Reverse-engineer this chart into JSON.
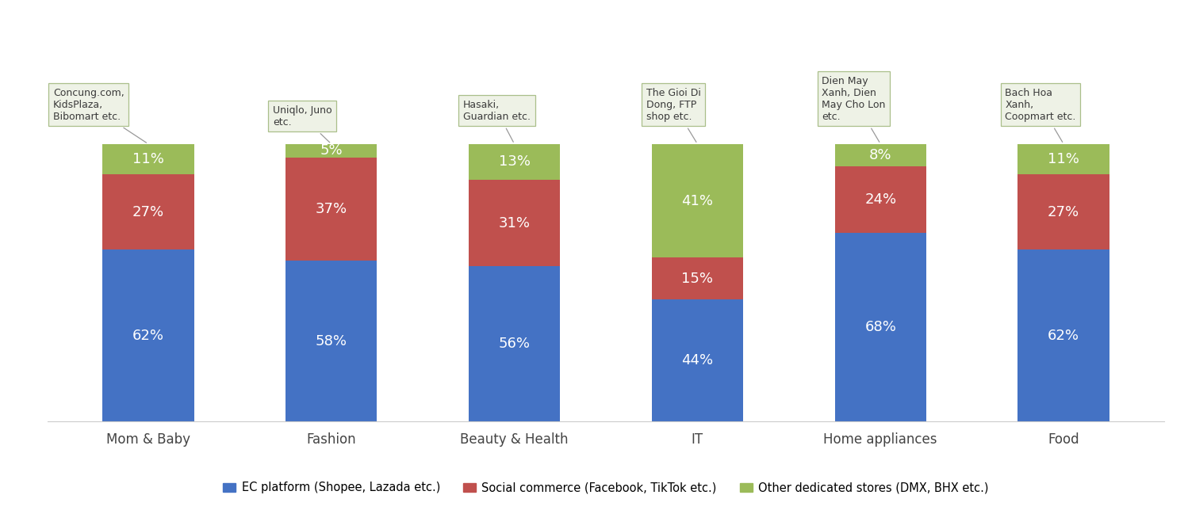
{
  "categories": [
    "Mom & Baby",
    "Fashion",
    "Beauty & Health",
    "IT",
    "Home appliances",
    "Food"
  ],
  "ec_platform": [
    62,
    58,
    56,
    44,
    68,
    62
  ],
  "social_commerce": [
    27,
    37,
    31,
    15,
    24,
    27
  ],
  "other_stores": [
    11,
    5,
    13,
    41,
    8,
    11
  ],
  "annotations": [
    "Concung.com,\nKidsPlaza,\nBibomart etc.",
    "Uniqlo, Juno\netc.",
    "Hasaki,\nGuardian etc.",
    "The Gioi Di\nDong, FTP\nshop etc.",
    "Dien May\nXanh, Dien\nMay Cho Lon\netc.",
    "Bach Hoa\nXanh,\nCoopmart etc."
  ],
  "color_ec": "#4472C4",
  "color_social": "#C0504D",
  "color_other": "#9BBB59",
  "legend_ec": "EC platform (Shopee, Lazada etc.)",
  "legend_social": "Social commerce (Facebook, TikTok etc.)",
  "legend_other": "Other dedicated stores (DMX, BHX etc.)",
  "background_color": "#FFFFFF",
  "annotation_box_facecolor": "#EEF2E6",
  "annotation_box_edgecolor": "#AABF8A",
  "bar_width": 0.5,
  "ylim_max": 100,
  "label_fontsize": 13,
  "tick_fontsize": 12,
  "legend_fontsize": 10.5,
  "annotation_fontsize": 9
}
